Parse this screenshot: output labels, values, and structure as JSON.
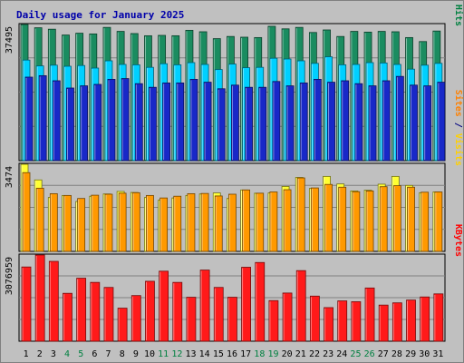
{
  "chart_data": {
    "type": "bar",
    "title": "Daily usage for January 2025",
    "categories": [
      "1",
      "2",
      "3",
      "4",
      "5",
      "6",
      "7",
      "8",
      "9",
      "10",
      "11",
      "12",
      "13",
      "14",
      "15",
      "16",
      "17",
      "18",
      "19",
      "20",
      "21",
      "22",
      "23",
      "24",
      "25",
      "26",
      "27",
      "28",
      "29",
      "30",
      "31"
    ],
    "weekend_days": [
      "4",
      "5",
      "11",
      "12",
      "18",
      "19",
      "25",
      "26"
    ],
    "panels": [
      {
        "name": "hits-files-pages",
        "max_label": "37495",
        "ymax": 37495,
        "side_label": [
          {
            "text": "Pages",
            "color": "#00a0c0"
          },
          {
            "text": " / ",
            "color": "#000080"
          },
          {
            "text": "Files",
            "color": "#00a0c0"
          },
          {
            "text": " / ",
            "color": "#000080"
          },
          {
            "text": "Hits",
            "color": "#008040"
          }
        ],
        "series": [
          {
            "name": "Hits",
            "color": "#1a8c60",
            "values": [
              37495,
              36600,
              36200,
              34600,
              35100,
              34900,
              36700,
              35600,
              35000,
              34400,
              34500,
              34400,
              35900,
              35500,
              33600,
              34200,
              34000,
              33900,
              37000,
              36300,
              36700,
              35300,
              36000,
              34200,
              35600,
              35400,
              35600,
              35500,
              33900,
              32800,
              35700
            ]
          },
          {
            "name": "Files",
            "color": "#00d0ff",
            "values": [
              27700,
              26100,
              26300,
              26000,
              26200,
              25500,
              27500,
              26500,
              26400,
              25700,
              26700,
              26400,
              27000,
              26500,
              25100,
              26600,
              25600,
              25700,
              28200,
              28000,
              27500,
              26800,
              28600,
              26400,
              26500,
              27000,
              26900,
              26500,
              25200,
              26300,
              26800
            ]
          },
          {
            "name": "Pages",
            "color": "#1828c8",
            "values": [
              23000,
              23400,
              22000,
              20000,
              20600,
              21000,
              22400,
              22600,
              21200,
              20200,
              21400,
              21400,
              22400,
              21600,
              19800,
              20800,
              20200,
              20200,
              21800,
              20600,
              21400,
              22400,
              21600,
              22000,
              21200,
              20600,
              22000,
              23200,
              20800,
              20600,
              21600
            ]
          }
        ]
      },
      {
        "name": "visits-sites",
        "max_label": "3474",
        "ymax": 3474,
        "side_label": [
          {
            "text": "Sites",
            "color": "#ff8000"
          },
          {
            "text": " / ",
            "color": "#000080"
          },
          {
            "text": "Visits",
            "color": "#ffd000"
          }
        ],
        "series": [
          {
            "name": "Visits",
            "color": "#ffff33",
            "values": [
              3474,
              2850,
              2150,
              2230,
              1990,
              2200,
              2290,
              2390,
              2350,
              2150,
              2050,
              2130,
              2230,
              2290,
              2330,
              2110,
              2450,
              2320,
              2330,
              2590,
              2950,
              2510,
              2990,
              2690,
              2410,
              2440,
              2680,
              2990,
              2630,
              2340,
              2370
            ]
          },
          {
            "name": "Sites",
            "color": "#ff9900",
            "values": [
              3140,
              2520,
              2300,
              2230,
              2110,
              2240,
              2280,
              2320,
              2340,
              2230,
              2130,
              2200,
              2300,
              2310,
              2210,
              2280,
              2450,
              2320,
              2370,
              2460,
              2930,
              2530,
              2670,
              2560,
              2380,
              2410,
              2580,
              2620,
              2560,
              2360,
              2370
            ]
          }
        ]
      },
      {
        "name": "kbytes",
        "max_label": "3076959",
        "ymax": 3076959,
        "side_label": [
          {
            "text": "KBytes",
            "color": "#ff0000"
          }
        ],
        "series": [
          {
            "name": "KBytes",
            "color": "#ff1a1a",
            "values": [
              2650000,
              3076959,
              2850000,
              1710000,
              2250000,
              2100000,
              1920000,
              1180000,
              1630000,
              2140000,
              2500000,
              2100000,
              1570000,
              2540000,
              1920000,
              1570000,
              2640000,
              2810000,
              1450000,
              1720000,
              2520000,
              1610000,
              1200000,
              1440000,
              1410000,
              1900000,
              1290000,
              1370000,
              1470000,
              1580000,
              1690000
            ]
          }
        ]
      }
    ]
  }
}
